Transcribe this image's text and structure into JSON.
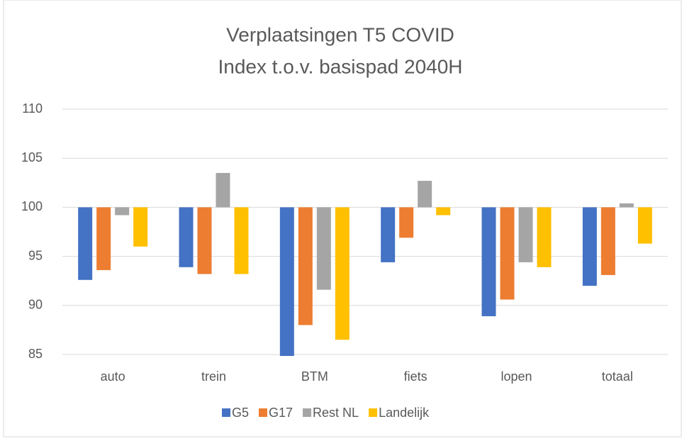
{
  "chart_data": {
    "type": "bar",
    "title": [
      "Verplaatsingen T5 COVID",
      "Index t.o.v. basispad 2040H"
    ],
    "categories": [
      "auto",
      "trein",
      "BTM",
      "fiets",
      "lopen",
      "totaal"
    ],
    "series": [
      {
        "name": "G5",
        "color": "#4472c4",
        "values": [
          92.6,
          93.9,
          84.8,
          94.4,
          88.9,
          92.0
        ]
      },
      {
        "name": "G17",
        "color": "#ed7d31",
        "values": [
          93.6,
          93.2,
          88.0,
          96.9,
          90.6,
          93.1
        ]
      },
      {
        "name": "Rest NL",
        "color": "#a5a5a5",
        "values": [
          99.2,
          103.5,
          91.6,
          102.7,
          94.4,
          100.4
        ]
      },
      {
        "name": "Landelijk",
        "color": "#ffc000",
        "values": [
          96.0,
          93.2,
          86.5,
          99.2,
          93.9,
          96.3
        ]
      }
    ],
    "baseline": 100,
    "ylim": [
      85,
      110
    ],
    "yticks": [
      85,
      90,
      95,
      100,
      105,
      110
    ],
    "grid": true,
    "legend": "bottom"
  }
}
